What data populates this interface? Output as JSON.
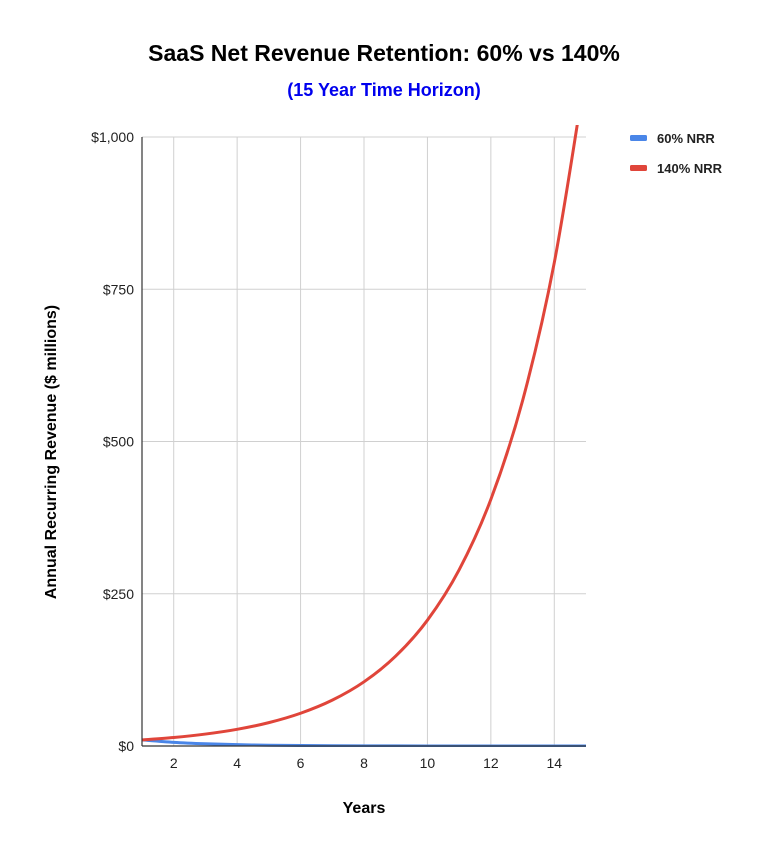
{
  "chart_data": {
    "type": "line",
    "title": "SaaS Net Revenue Retention: 60% vs 140%",
    "subtitle": "(15 Year Time Horizon)",
    "xlabel": "Years",
    "ylabel": "Annual Recurring Revenue ($ millions)",
    "x": [
      1,
      2,
      3,
      4,
      5,
      6,
      7,
      8,
      9,
      10,
      11,
      12,
      13,
      14,
      15
    ],
    "xlim": [
      1,
      15
    ],
    "ylim": [
      0,
      1000
    ],
    "x_ticks": [
      2,
      4,
      6,
      8,
      10,
      12,
      14
    ],
    "x_tick_labels": [
      "2",
      "4",
      "6",
      "8",
      "10",
      "12",
      "14"
    ],
    "y_ticks": [
      0,
      250,
      500,
      750,
      1000
    ],
    "y_tick_labels": [
      "$0",
      "$250",
      "$500",
      "$750",
      "$1,000"
    ],
    "grid": true,
    "legend_position": "top-right",
    "series": [
      {
        "name": "60% NRR",
        "color": "#4a86e8",
        "values": [
          10,
          6,
          3.6,
          2.2,
          1.3,
          0.8,
          0.5,
          0.3,
          0.2,
          0.1,
          0.06,
          0.04,
          0.02,
          0.01,
          0.01
        ]
      },
      {
        "name": "140% NRR",
        "color": "#e0453a",
        "values": [
          10,
          14,
          19.6,
          27.4,
          38.4,
          53.8,
          75.3,
          105.4,
          147.6,
          206.6,
          289.3,
          405,
          566.9,
          793.7,
          1111.2
        ]
      }
    ]
  },
  "colors": {
    "subtitle": "#0000ee",
    "grid": "#d0d0d0",
    "axis": "#333333"
  }
}
